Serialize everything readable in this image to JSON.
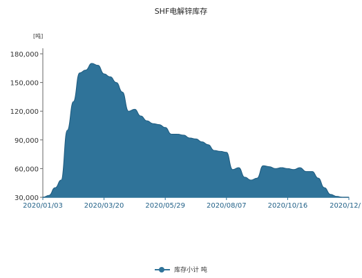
{
  "chart_data": {
    "type": "area",
    "title": "SHF电解锌库存",
    "unit_label": "[吨]",
    "ylim": [
      30000,
      180000
    ],
    "y_ticks": [
      "30,000",
      "60,000",
      "90,000",
      "120,000",
      "150,000",
      "180,000"
    ],
    "y_tick_values": [
      30000,
      60000,
      90000,
      120000,
      150000,
      180000
    ],
    "x_ticks": [
      "2020/01/03",
      "2020/03/20",
      "2020/05/29",
      "2020/08/07",
      "2020/10/16",
      "2020/12/"
    ],
    "x_index_range": [
      0,
      50
    ],
    "x_tick_positions": [
      0,
      10,
      20,
      30,
      40,
      50
    ],
    "legend_position": "bottom-center",
    "grid": false,
    "color": "#2f7399",
    "series": [
      {
        "name": "库存小计 吨",
        "values": [
          30000,
          32000,
          40000,
          48000,
          100000,
          130000,
          160000,
          163000,
          170000,
          168000,
          159000,
          156000,
          150000,
          140000,
          120000,
          122000,
          115000,
          110000,
          107000,
          106000,
          103000,
          96000,
          96000,
          95000,
          92000,
          91000,
          88000,
          85000,
          79000,
          78000,
          77000,
          59000,
          61000,
          51000,
          48000,
          50000,
          63000,
          62000,
          60000,
          61000,
          60000,
          59000,
          61000,
          57000,
          57000,
          50000,
          40000,
          33000,
          31000,
          30000,
          30000
        ]
      }
    ]
  }
}
